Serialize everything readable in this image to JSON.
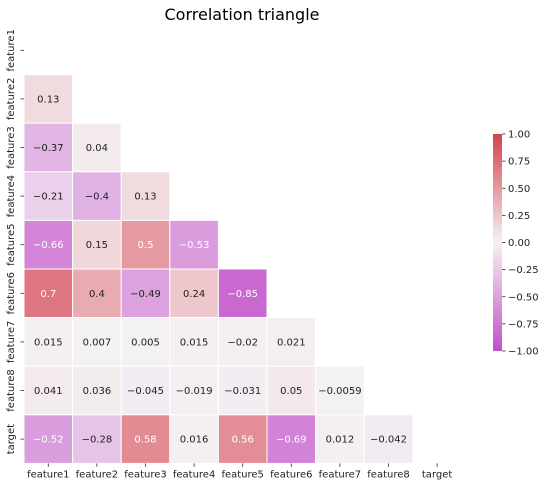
{
  "chart_data": {
    "type": "heatmap",
    "title": "Correlation triangle",
    "xlabel": "",
    "ylabel": "",
    "features": [
      "feature1",
      "feature2",
      "feature3",
      "feature4",
      "feature5",
      "feature6",
      "feature7",
      "feature8",
      "target"
    ],
    "lower_triangle_values": [
      [],
      [
        0.13
      ],
      [
        -0.37,
        0.04
      ],
      [
        -0.21,
        -0.4,
        0.13
      ],
      [
        -0.66,
        0.15,
        0.5,
        -0.53
      ],
      [
        0.7,
        0.4,
        -0.49,
        0.24,
        -0.85
      ],
      [
        0.015,
        0.007,
        0.005,
        0.015,
        -0.02,
        0.021
      ],
      [
        0.041,
        0.036,
        -0.045,
        -0.019,
        -0.031,
        0.05,
        -0.0059
      ],
      [
        -0.52,
        -0.28,
        0.58,
        0.016,
        0.56,
        -0.69,
        0.012,
        -0.042
      ]
    ],
    "colorbar": {
      "range": [
        -1.0,
        1.0
      ],
      "ticks": [
        "1.00",
        "0.75",
        "0.50",
        "0.25",
        "0.00",
        "−0.25",
        "−0.50",
        "−0.75",
        "−1.00"
      ],
      "low_color": "#c24fca",
      "mid_color": "#f4f2f3",
      "high_color": "#d6404e"
    },
    "grid": false,
    "legend": "right"
  }
}
